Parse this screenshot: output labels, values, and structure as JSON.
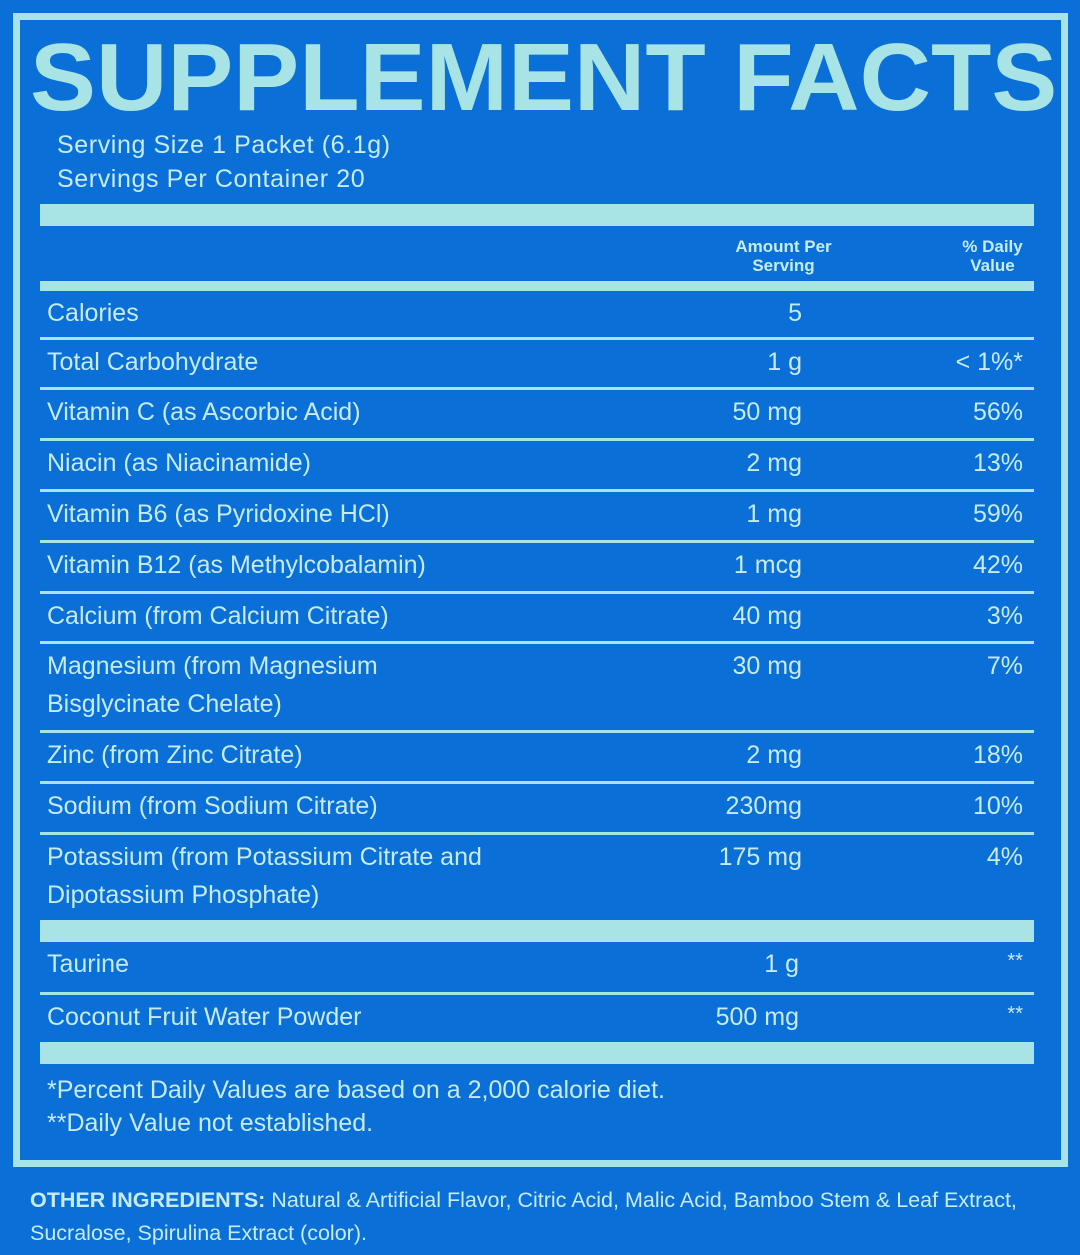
{
  "title": "SUPPLEMENT FACTS",
  "serving_size": "Serving Size 1 Packet (6.1g)",
  "servings_per_container": "Servings Per Container 20",
  "headers": {
    "amount_line1": "Amount Per",
    "amount_line2": "Serving",
    "dv_line1": "% Daily",
    "dv_line2": "Value"
  },
  "rows": [
    {
      "name": "Calories",
      "amount": "5",
      "dv": ""
    },
    {
      "name": "Total Carbohydrate",
      "amount": "1 g",
      "dv": "< 1%*"
    },
    {
      "name": "Vitamin C (as Ascorbic Acid)",
      "amount": "50 mg",
      "dv": "56%"
    },
    {
      "name": "Niacin (as Niacinamide)",
      "amount": "2 mg",
      "dv": "13%"
    },
    {
      "name": "Vitamin B6 (as Pyridoxine HCl)",
      "amount": "1 mg",
      "dv": "59%"
    },
    {
      "name": "Vitamin B12 (as Methylcobalamin)",
      "amount": "1 mcg",
      "dv": "42%"
    },
    {
      "name": "Calcium (from Calcium Citrate)",
      "amount": "40 mg",
      "dv": "3%"
    },
    {
      "name": "Magnesium (from Magnesium",
      "name2": "Bisglycinate Chelate)",
      "amount": "30 mg",
      "dv": "7%"
    },
    {
      "name": "Zinc (from Zinc Citrate)",
      "amount": "2 mg",
      "dv": "18%"
    },
    {
      "name": "Sodium (from Sodium Citrate)",
      "amount": "230mg",
      "dv": "10%"
    },
    {
      "name": "Potassium (from Potassium Citrate and",
      "name2": "Dipotassium Phosphate)",
      "amount": "175 mg",
      "dv": "4%"
    },
    {
      "name": "Taurine",
      "amount": "1 g",
      "dv": "**"
    },
    {
      "name": "Coconut Fruit Water Powder",
      "amount": "500 mg",
      "dv": "**"
    }
  ],
  "footnote1": "*Percent Daily Values are based on a 2,000 calorie diet.",
  "footnote2": "**Daily Value not established.",
  "ingredients_label": "OTHER INGREDIENTS:",
  "ingredients_text": " Natural & Artificial Flavor, Citric Acid, Malic Acid, Bamboo Stem & Leaf Extract, Sucralose, Spirulina Extract (color).",
  "colors": {
    "background": "#0a6fd6",
    "accent": "#a8e3e6",
    "text": "#c6ecf0"
  }
}
